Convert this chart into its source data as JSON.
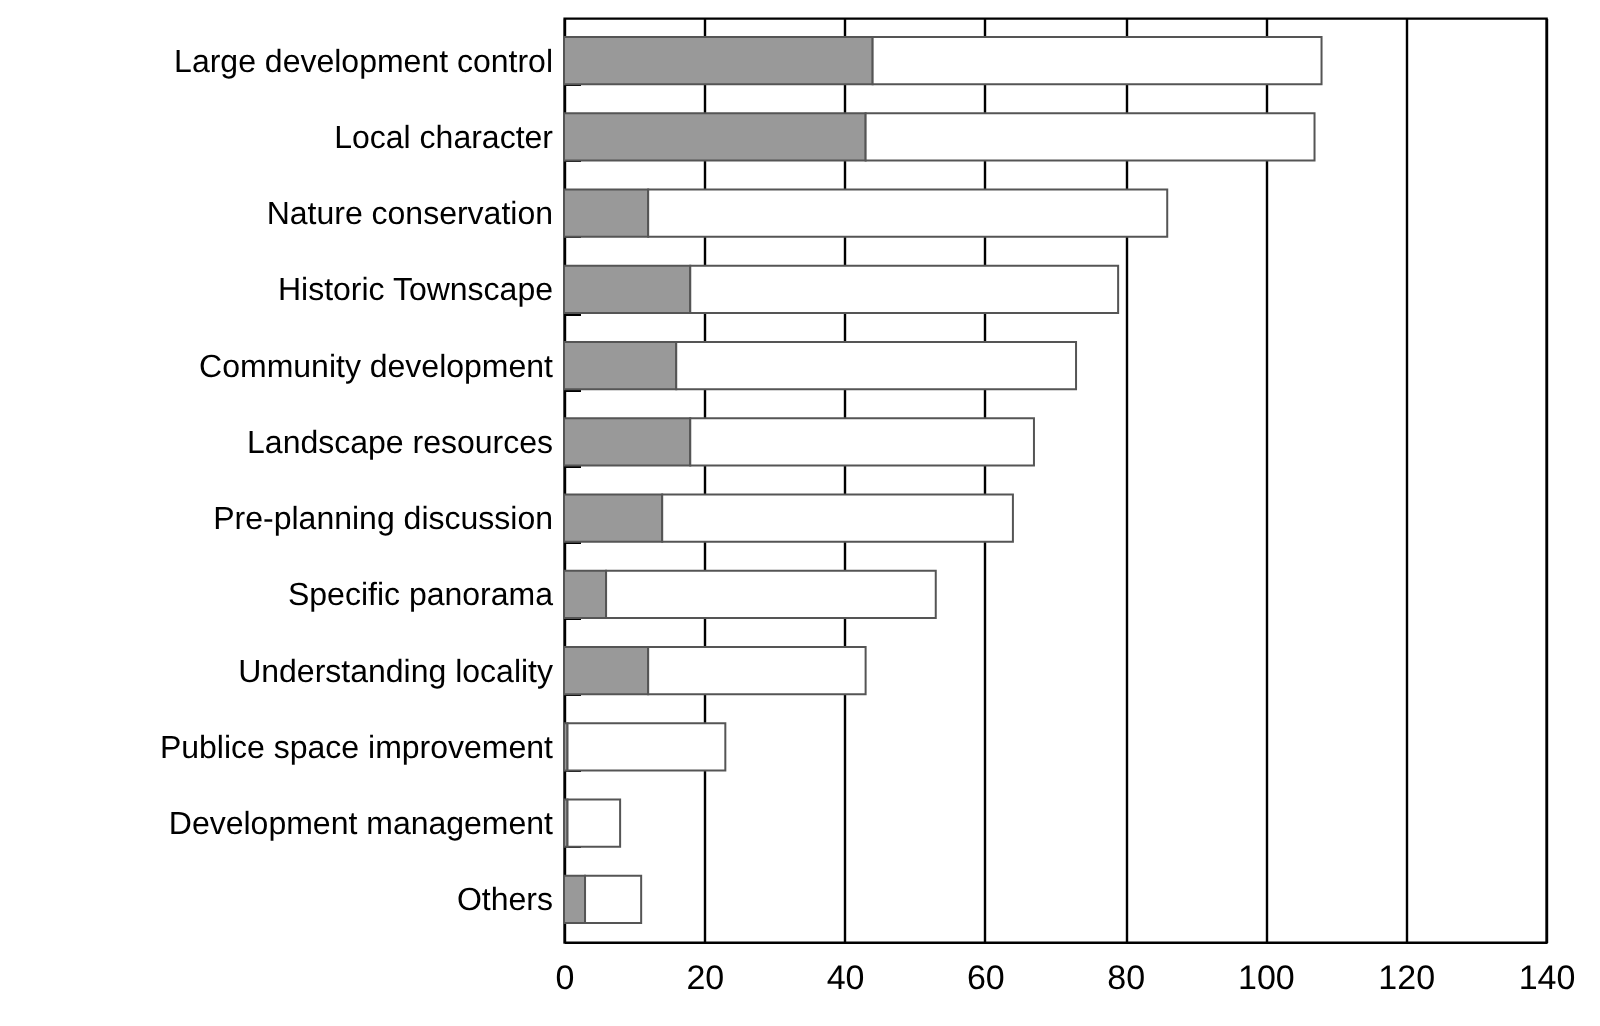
{
  "chart_data": {
    "type": "bar",
    "orientation": "horizontal",
    "stacked": true,
    "categories": [
      "Large development control",
      "Local character",
      "Nature conservation",
      "Historic Townscape",
      "Community development",
      "Landscape resources",
      "Pre-planning discussion",
      "Specific panorama",
      "Understanding locality",
      "Publice space improvement",
      "Development management",
      "Others"
    ],
    "series": [
      {
        "color": "#999999",
        "values": [
          44,
          43,
          12,
          18,
          16,
          18,
          14,
          6,
          12,
          0.5,
          0.5,
          3
        ]
      },
      {
        "color": "#ffffff",
        "values": [
          64,
          64,
          74,
          61,
          57,
          49,
          50,
          47,
          31,
          22.5,
          7.5,
          8
        ]
      }
    ],
    "xlim": [
      0,
      140
    ],
    "xticks": [
      0,
      20,
      40,
      60,
      80,
      100,
      120,
      140
    ],
    "grid": "x"
  }
}
